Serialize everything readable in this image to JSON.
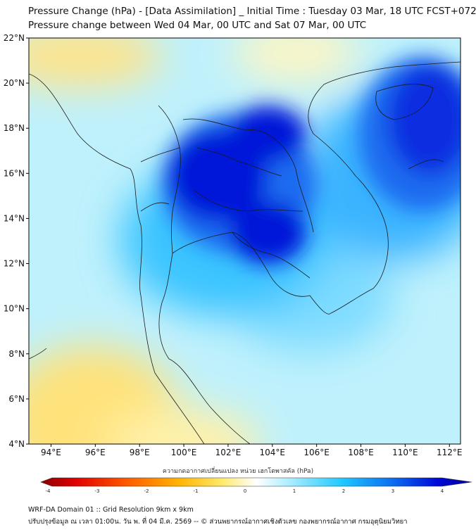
{
  "header": {
    "title": "Pressure Change (hPa) - [Data Assimilation] _ Initial Time : Tuesday 03 Mar, 18 UTC FCST+072",
    "subtitle": "Pressure change between Wed 04 Mar, 00 UTC and Sat 07 Mar, 00 UTC"
  },
  "map": {
    "lat_range": [
      4,
      22
    ],
    "lon_range": [
      93,
      112.5
    ],
    "lat_ticks": [
      "22°N",
      "20°N",
      "18°N",
      "16°N",
      "14°N",
      "12°N",
      "10°N",
      "8°N",
      "6°N",
      "4°N"
    ],
    "lon_ticks": [
      "94°E",
      "96°E",
      "98°E",
      "100°E",
      "102°E",
      "104°E",
      "106°E",
      "108°E",
      "110°E",
      "112°E"
    ]
  },
  "colorbar": {
    "label": "ความกดอากาศเปลี่ยนแปลง หน่วย เฮกโตพาสคัล (hPa)",
    "ticks": [
      "-4",
      "-3",
      "-2",
      "-1",
      "0",
      "1",
      "2",
      "3",
      "4"
    ],
    "min": -4,
    "max": 4
  },
  "footer": {
    "line1": "WRF-DA Domain 01 :: Grid Resolution 9km x 9km",
    "line2": "ปรับปรุงข้อมูล ณ เวลา 01:00น. วัน พ. ที่ 04 มี.ค. 2569 -- © ส่วนพยากรณ์อากาศเชิงตัวเลข กองพยากรณ์อากาศ กรมอุตุนิยมวิทยา"
  }
}
